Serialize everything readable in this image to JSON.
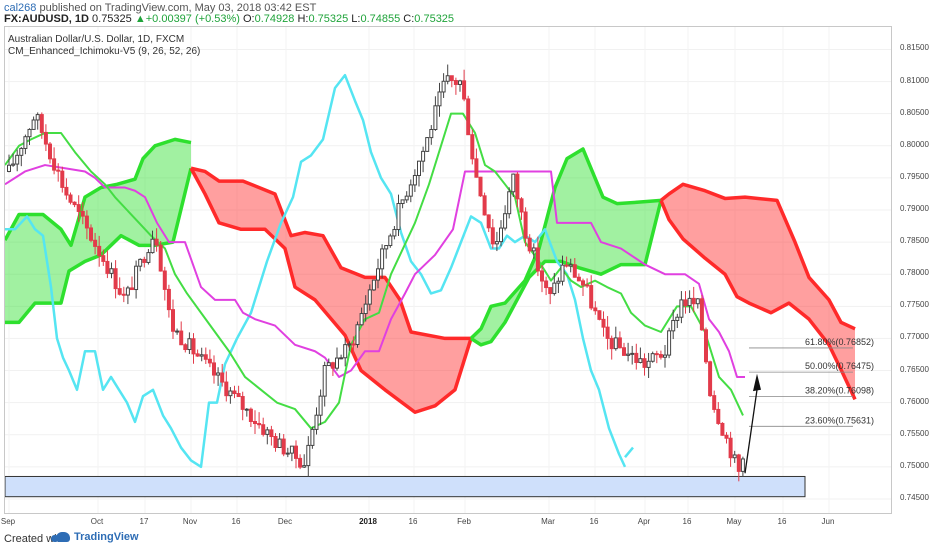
{
  "header": {
    "author": "cal268",
    "published_text": " published on TradingView.com, May 03, 2018 03:42 EST",
    "symbol": "FX:AUDUSD, 1D",
    "price": "0.75325",
    "change_arrow": "▲",
    "change": "+0.00397 (+0.53%)",
    "ohlc": [
      {
        "label": "O:",
        "value": "0.74928"
      },
      {
        "label": "H:",
        "value": "0.75325"
      },
      {
        "label": "L:",
        "value": "0.74855"
      },
      {
        "label": "C:",
        "value": "0.75325"
      }
    ]
  },
  "legend": {
    "series_title": "Australian Dollar/U.S. Dollar, 1D, FXCM",
    "indicator": "CM_Enhanced_Ichimoku-V5 (9, 26, 52, 26)"
  },
  "y_axis": {
    "ticks": [
      "0.81500",
      "0.81000",
      "0.80500",
      "0.80000",
      "0.79500",
      "0.79000",
      "0.78500",
      "0.78000",
      "0.77500",
      "0.77000",
      "0.76500",
      "0.76000",
      "0.75500",
      "0.75000",
      "0.74500"
    ],
    "min": 0.7425,
    "max": 0.8185
  },
  "x_axis": {
    "ticks": [
      {
        "label": "Sep",
        "bold": false
      },
      {
        "label": "Oct",
        "bold": false
      },
      {
        "label": "17",
        "bold": false
      },
      {
        "label": "Nov",
        "bold": false
      },
      {
        "label": "16",
        "bold": false
      },
      {
        "label": "Dec",
        "bold": false
      },
      {
        "label": "2018",
        "bold": true
      },
      {
        "label": "16",
        "bold": false
      },
      {
        "label": "Feb",
        "bold": false
      },
      {
        "label": "Mar",
        "bold": false
      },
      {
        "label": "16",
        "bold": false
      },
      {
        "label": "Apr",
        "bold": false
      },
      {
        "label": "16",
        "bold": false
      },
      {
        "label": "May",
        "bold": false
      },
      {
        "label": "16",
        "bold": false
      },
      {
        "label": "Jun",
        "bold": false
      }
    ]
  },
  "fib_levels": [
    {
      "label": "61.80%(0.76852)",
      "value": 0.76852
    },
    {
      "label": "50.00%(0.76475)",
      "value": 0.76475
    },
    {
      "label": "38.20%(0.76098)",
      "value": 0.76098
    },
    {
      "label": "23.60%(0.75631)",
      "value": 0.75631
    }
  ],
  "colors": {
    "bull_candle": "#444444",
    "bear_candle": "#e23b4a",
    "cloud_bull": "#2ee02e",
    "cloud_bear": "#ff2a2a",
    "tenkan": "#44dd44",
    "kijun": "#e040e0",
    "chikou": "#55e5f2",
    "support_zone": "#cfe0fb"
  },
  "footer": {
    "created_with": "Created with",
    "brand": "TradingView"
  }
}
